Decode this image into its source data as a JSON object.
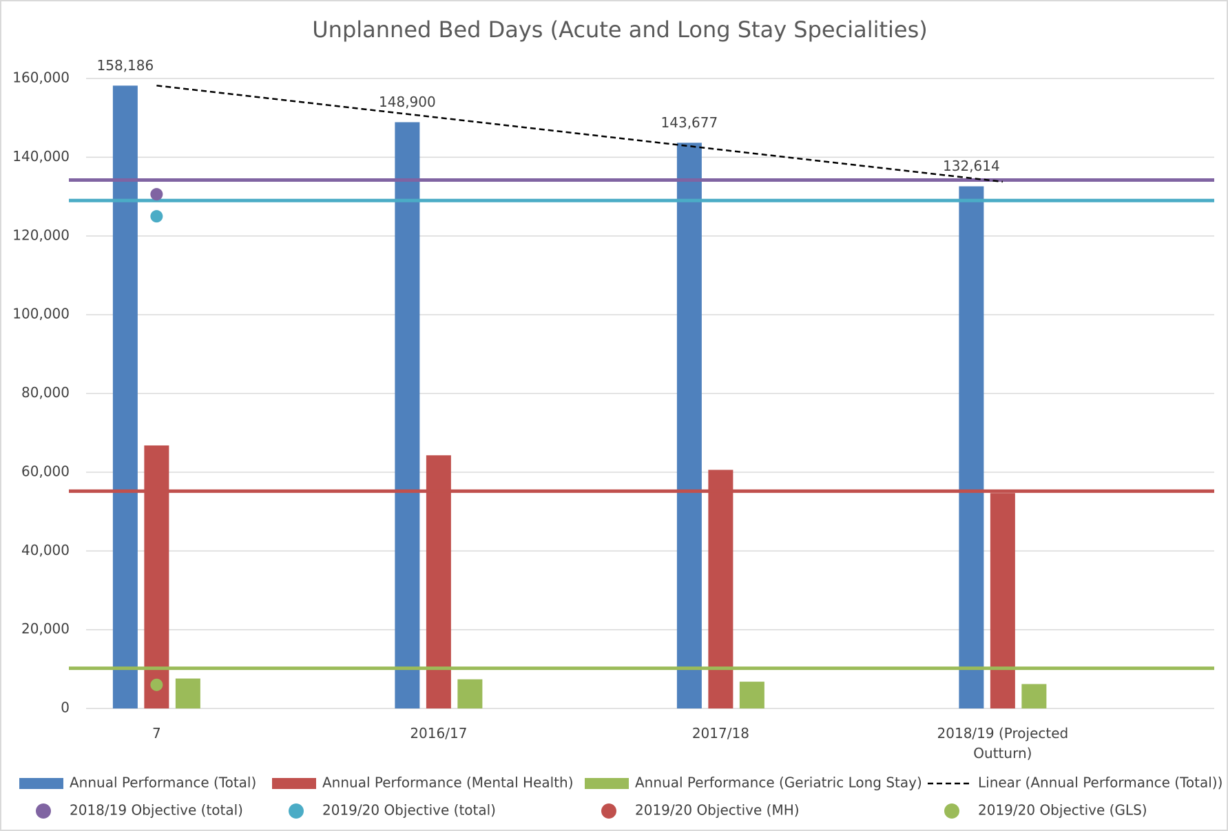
{
  "chart_data": {
    "type": "bar",
    "title": "Unplanned Bed Days (Acute and Long Stay Specialities)",
    "categories": [
      "7",
      "2016/17",
      "2017/18",
      "2018/19 (Projected Outturn)"
    ],
    "ylim": [
      0,
      160000
    ],
    "yticks": [
      0,
      {
        "value": 20000,
        "label": "20,000"
      },
      {
        "value": 40000,
        "label": "40,000"
      },
      {
        "value": 60000,
        "label": "60,000"
      },
      {
        "value": 80000,
        "label": "80,000"
      },
      {
        "value": 100000,
        "label": "100,000"
      },
      {
        "value": 120000,
        "label": "120,000"
      },
      {
        "value": 140000,
        "label": "140,000"
      },
      {
        "value": 160000,
        "label": "160,000"
      }
    ],
    "grid": true,
    "series": [
      {
        "name": "Annual Performance (Total)",
        "color": "#4f81bd",
        "values": [
          158186,
          148900,
          143677,
          132614
        ],
        "value_labels": [
          "158,186",
          "148,900",
          "143,677",
          "132,614"
        ]
      },
      {
        "name": "Annual Performance (Mental Health)",
        "color": "#c0504d",
        "values": [
          66800,
          64300,
          60600,
          54700
        ]
      },
      {
        "name": "Annual Performance (Geriatric Long Stay)",
        "color": "#9bbb59",
        "values": [
          7600,
          7400,
          6800,
          6200
        ]
      }
    ],
    "trend": {
      "name": "Linear (Annual Performance (Total))",
      "color": "#000000",
      "values": [
        158200,
        150057,
        141914,
        133771
      ]
    },
    "objectives": [
      {
        "name": "2018/19 Objective (total)",
        "color": "#8064a2",
        "values": [
          130600,
          null,
          null,
          null
        ]
      },
      {
        "name": "2019/20 Objective (total)",
        "color": "#4bacc6",
        "values": [
          125000,
          null,
          null,
          null
        ]
      },
      {
        "name": "2019/20 Objective (MH)",
        "color": "#c0504d",
        "values": [
          55000,
          null,
          null,
          null
        ]
      },
      {
        "name": "2019/20 Objective (GLS)",
        "color": "#9bbb59",
        "values": [
          6000,
          null,
          null,
          null
        ]
      }
    ],
    "objective_lines": [
      {
        "color": "#8064a2",
        "value": 134200
      },
      {
        "color": "#4bacc6",
        "value": 129000
      },
      {
        "color": "#c0504d",
        "value": 55200
      },
      {
        "color": "#9bbb59",
        "value": 10200
      }
    ]
  }
}
